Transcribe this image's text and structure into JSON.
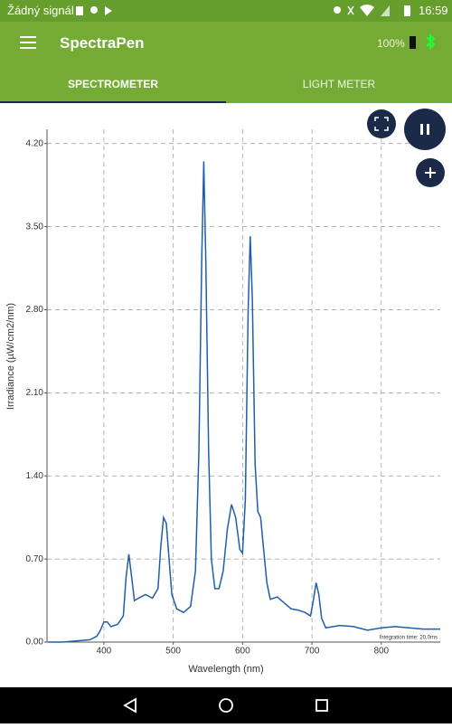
{
  "status_bar": {
    "carrier": "Žádný signál",
    "time": "16:59"
  },
  "app_bar": {
    "title": "SpectraPen",
    "battery": "100%"
  },
  "tabs": [
    "SPECTROMETER",
    "LIGHT METER"
  ],
  "chart_data": {
    "type": "line",
    "x_label": "Wavelength (nm)",
    "y_label": "Irradiance (µW/cm2/nm)",
    "annotation": "Integration time: 20.0ms",
    "x": [
      320,
      340,
      360,
      380,
      390,
      395,
      400,
      405,
      410,
      420,
      428,
      432,
      436,
      440,
      444,
      450,
      460,
      470,
      478,
      482,
      486,
      490,
      494,
      498,
      505,
      515,
      525,
      532,
      537,
      541,
      544,
      547,
      551,
      555,
      560,
      566,
      572,
      578,
      584,
      590,
      596,
      600,
      604,
      608,
      611,
      614,
      618,
      622,
      626,
      630,
      635,
      640,
      650,
      660,
      670,
      680,
      690,
      698,
      702,
      706,
      710,
      714,
      720,
      740,
      760,
      780,
      800,
      820,
      840,
      860,
      885
    ],
    "series": [
      {
        "color": "#1f5fa8",
        "values": [
          0.0,
          0.0,
          0.01,
          0.02,
          0.05,
          0.1,
          0.17,
          0.17,
          0.13,
          0.15,
          0.22,
          0.55,
          0.74,
          0.55,
          0.35,
          0.37,
          0.4,
          0.37,
          0.45,
          0.8,
          1.05,
          1.0,
          0.7,
          0.4,
          0.28,
          0.25,
          0.3,
          0.6,
          1.6,
          3.2,
          4.05,
          3.2,
          1.6,
          0.7,
          0.45,
          0.45,
          0.6,
          0.95,
          1.16,
          1.05,
          0.78,
          0.75,
          1.2,
          2.8,
          3.42,
          2.9,
          1.5,
          1.1,
          1.05,
          0.8,
          0.5,
          0.36,
          0.38,
          0.33,
          0.28,
          0.27,
          0.25,
          0.22,
          0.35,
          0.5,
          0.4,
          0.2,
          0.12,
          0.14,
          0.13,
          0.1,
          0.12,
          0.13,
          0.12,
          0.11,
          0.11
        ]
      }
    ],
    "xlim": [
      318,
      885
    ],
    "ylim": [
      0,
      4.32
    ],
    "xticks": [
      400,
      500,
      600,
      700,
      800
    ],
    "yticks": [
      {
        "value": 0,
        "label": "0.00"
      },
      {
        "value": 0.7,
        "label": "0.70"
      },
      {
        "value": 1.4,
        "label": "1.40"
      },
      {
        "value": 2.1,
        "label": "2.10"
      },
      {
        "value": 2.8,
        "label": "2.80"
      },
      {
        "value": 3.5,
        "label": "3.50"
      },
      {
        "value": 4.2,
        "label": "4.20"
      }
    ],
    "grid": true
  }
}
